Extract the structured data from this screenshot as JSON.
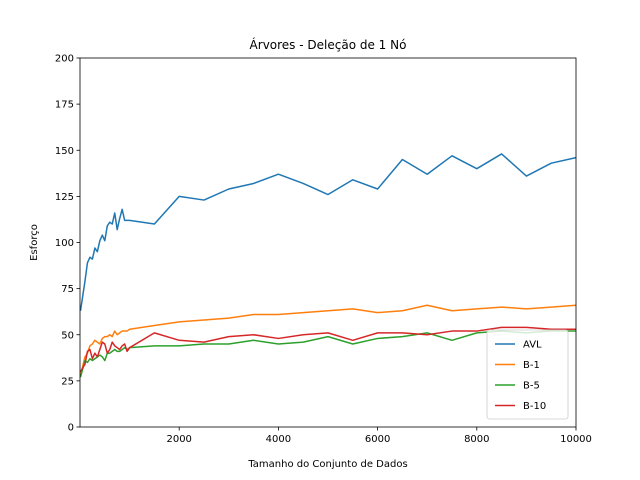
{
  "chart_data": {
    "type": "line",
    "title": "Árvores - Deleção de 1 Nó",
    "xlabel": "Tamanho do Conjunto de Dados",
    "ylabel": "Esforço",
    "xlim": [
      0,
      10000
    ],
    "ylim": [
      0,
      200
    ],
    "xticks": [
      2000,
      4000,
      6000,
      8000,
      10000
    ],
    "xtick_labels": [
      "2000",
      "4000",
      "6000",
      "8000",
      "10000"
    ],
    "yticks": [
      0,
      25,
      50,
      75,
      100,
      125,
      150,
      175,
      200
    ],
    "ytick_labels": [
      "0",
      "25",
      "50",
      "75",
      "100",
      "125",
      "150",
      "175",
      "200"
    ],
    "grid": false,
    "legend_position": "lower-right",
    "series": [
      {
        "name": "AVL",
        "color": "#1f77b4",
        "x": [
          10,
          100,
          150,
          200,
          250,
          300,
          350,
          400,
          450,
          500,
          550,
          600,
          650,
          700,
          750,
          800,
          850,
          900,
          950,
          1000,
          1500,
          2000,
          2500,
          3000,
          3500,
          4000,
          4500,
          5000,
          5500,
          6000,
          6500,
          7000,
          7500,
          8000,
          8500,
          9000,
          9500,
          10000
        ],
        "y": [
          63,
          79,
          89,
          92,
          91,
          97,
          95,
          101,
          104,
          101,
          109,
          111,
          110,
          116,
          107,
          113,
          118,
          112,
          112,
          112,
          110,
          125,
          123,
          129,
          132,
          137,
          132,
          126,
          134,
          129,
          145,
          137,
          147,
          140,
          148,
          136,
          143,
          146
        ]
      },
      {
        "name": "B-1",
        "color": "#ff7f0e",
        "x": [
          10,
          100,
          150,
          200,
          250,
          300,
          350,
          400,
          450,
          500,
          550,
          600,
          650,
          700,
          750,
          800,
          850,
          900,
          950,
          1000,
          1500,
          2000,
          2500,
          3000,
          3500,
          4000,
          4500,
          5000,
          5500,
          6000,
          6500,
          7000,
          7500,
          8000,
          8500,
          9000,
          9500,
          10000
        ],
        "y": [
          28,
          38,
          40,
          44,
          45,
          47,
          46,
          45,
          48,
          49,
          49,
          50,
          49,
          52,
          50,
          51,
          52,
          52,
          52,
          53,
          55,
          57,
          58,
          59,
          61,
          61,
          62,
          63,
          64,
          62,
          63,
          66,
          63,
          64,
          65,
          64,
          65,
          66
        ]
      },
      {
        "name": "B-5",
        "color": "#2ca02c",
        "x": [
          10,
          100,
          150,
          200,
          250,
          300,
          350,
          400,
          450,
          500,
          550,
          600,
          650,
          700,
          750,
          800,
          850,
          900,
          950,
          1000,
          1500,
          2000,
          2500,
          3000,
          3500,
          4000,
          4500,
          5000,
          5500,
          6000,
          6500,
          7000,
          7500,
          8000,
          8500,
          9000,
          9500,
          10000
        ],
        "y": [
          27,
          36,
          35,
          37,
          36,
          37,
          38,
          39,
          38,
          36,
          40,
          40,
          41,
          42,
          41,
          41,
          42,
          43,
          42,
          43,
          44,
          44,
          45,
          45,
          47,
          45,
          46,
          49,
          45,
          48,
          49,
          51,
          47,
          51,
          52,
          51,
          52,
          52
        ]
      },
      {
        "name": "B-10",
        "color": "#d62728",
        "x": [
          10,
          100,
          150,
          200,
          250,
          300,
          350,
          400,
          450,
          500,
          550,
          600,
          650,
          700,
          750,
          800,
          850,
          900,
          950,
          1000,
          1500,
          2000,
          2500,
          3000,
          3500,
          4000,
          4500,
          5000,
          5500,
          6000,
          6500,
          7000,
          7500,
          8000,
          8500,
          9000,
          9500,
          10000
        ],
        "y": [
          30,
          34,
          41,
          42,
          37,
          40,
          38,
          42,
          46,
          45,
          40,
          42,
          46,
          44,
          43,
          42,
          44,
          45,
          41,
          43,
          51,
          47,
          46,
          49,
          50,
          48,
          50,
          51,
          47,
          51,
          51,
          50,
          52,
          52,
          54,
          54,
          53,
          53
        ]
      }
    ]
  }
}
